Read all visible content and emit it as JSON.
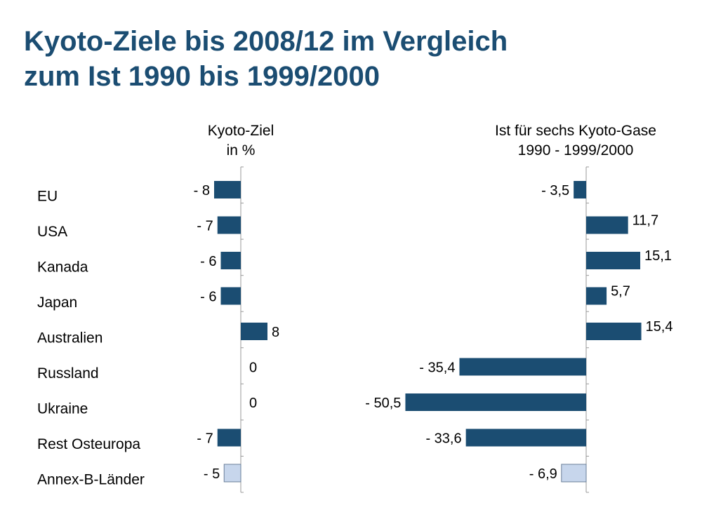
{
  "title_line1": "Kyoto-Ziele bis 2008/12 im Vergleich",
  "title_line2": "zum Ist 1990 bis 1999/2000",
  "colors": {
    "title": "#1b4d72",
    "bar": "#1b4d72",
    "total_bar": "#c7d6ec",
    "axis": "#999999"
  },
  "chart_data": [
    {
      "type": "bar",
      "orientation": "horizontal",
      "header": [
        "Kyoto-Ziel",
        "in %"
      ],
      "categories": [
        "EU",
        "USA",
        "Kanada",
        "Japan",
        "Australien",
        "Russland",
        "Ukraine",
        "Rest Osteuropa",
        "Annex-B-Länder"
      ],
      "values": [
        -8,
        -7,
        -6,
        -6,
        8,
        0,
        0,
        -7,
        -5
      ],
      "labels": [
        "- 8",
        "- 7",
        "- 6",
        "- 6",
        "8",
        "0",
        "0",
        "- 7",
        "- 5"
      ],
      "highlight_index": 8
    },
    {
      "type": "bar",
      "orientation": "horizontal",
      "header": [
        "Ist für sechs Kyoto-Gase",
        "1990 - 1999/2000"
      ],
      "categories": [
        "EU",
        "USA",
        "Kanada",
        "Japan",
        "Australien",
        "Russland",
        "Ukraine",
        "Rest Osteuropa",
        "Annex-B-Länder"
      ],
      "values": [
        -3.5,
        11.7,
        15.1,
        5.7,
        15.4,
        -35.4,
        -50.5,
        -33.6,
        -6.9
      ],
      "labels": [
        "- 3,5",
        "11,7",
        "15,1",
        "5,7",
        "15,4",
        "- 35,4",
        "- 50,5",
        "- 33,6",
        "- 6,9"
      ],
      "highlight_index": 8
    }
  ]
}
